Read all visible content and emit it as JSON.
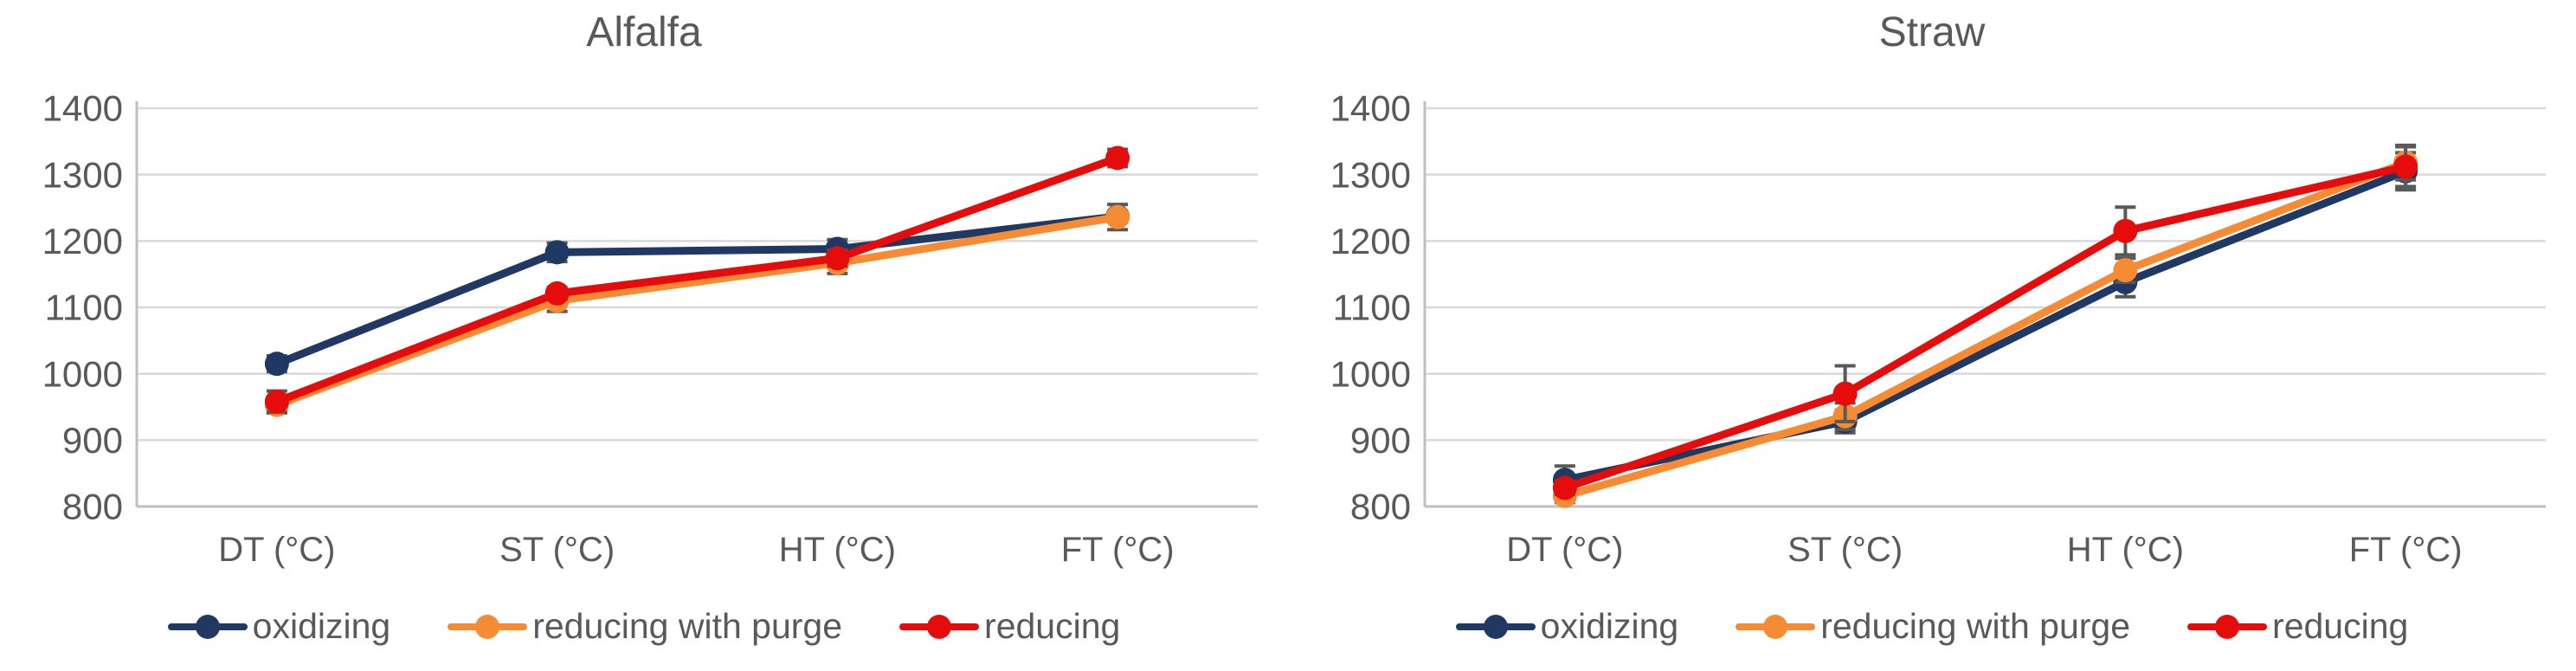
{
  "colors": {
    "background": "#ffffff",
    "title_text": "#595959",
    "axis_text": "#595959",
    "legend_text": "#595959",
    "gridline": "#d9d9d9",
    "axis_line": "#bfbfbf",
    "error_bar": "#595959",
    "oxidizing": "#1f3864",
    "reducing_with_purge": "#f68b33",
    "reducing": "#e60c0c"
  },
  "chart_data": [
    {
      "type": "line",
      "title": "Alfalfa",
      "categories": [
        "DT (°C)",
        "ST (°C)",
        "HT (°C)",
        "FT (°C)"
      ],
      "ylim": [
        800,
        1400
      ],
      "ytick_step": 100,
      "ytick_labels": [
        "800",
        "900",
        "1000",
        "1100",
        "1200",
        "1300",
        "1400"
      ],
      "grid": true,
      "legend_position": "bottom",
      "series": [
        {
          "name": "oxidizing",
          "color": "#1f3864",
          "values": [
            1015,
            1183,
            1188,
            1237
          ],
          "error": [
            12,
            14,
            14,
            8
          ]
        },
        {
          "name": "reducing with purge",
          "color": "#f68b33",
          "values": [
            953,
            1110,
            1167,
            1236
          ],
          "error": [
            12,
            16,
            16,
            19
          ]
        },
        {
          "name": "reducing",
          "color": "#e60c0c",
          "values": [
            958,
            1121,
            1174,
            1325
          ],
          "error": [
            16,
            9,
            12,
            13
          ]
        }
      ]
    },
    {
      "type": "line",
      "title": "Straw",
      "categories": [
        "DT (°C)",
        "ST (°C)",
        "HT (°C)",
        "FT (°C)"
      ],
      "ylim": [
        800,
        1400
      ],
      "ytick_step": 100,
      "ytick_labels": [
        "800",
        "900",
        "1000",
        "1100",
        "1200",
        "1300",
        "1400"
      ],
      "grid": true,
      "legend_position": "bottom",
      "series": [
        {
          "name": "oxidizing",
          "color": "#1f3864",
          "values": [
            840,
            928,
            1138,
            1305
          ],
          "error": [
            21,
            17,
            22,
            28
          ]
        },
        {
          "name": "reducing with purge",
          "color": "#f68b33",
          "values": [
            816,
            936,
            1156,
            1318
          ],
          "error": [
            10,
            20,
            18,
            26
          ]
        },
        {
          "name": "reducing",
          "color": "#e60c0c",
          "values": [
            828,
            970,
            1215,
            1312
          ],
          "error": [
            10,
            42,
            36,
            30
          ]
        }
      ]
    }
  ]
}
